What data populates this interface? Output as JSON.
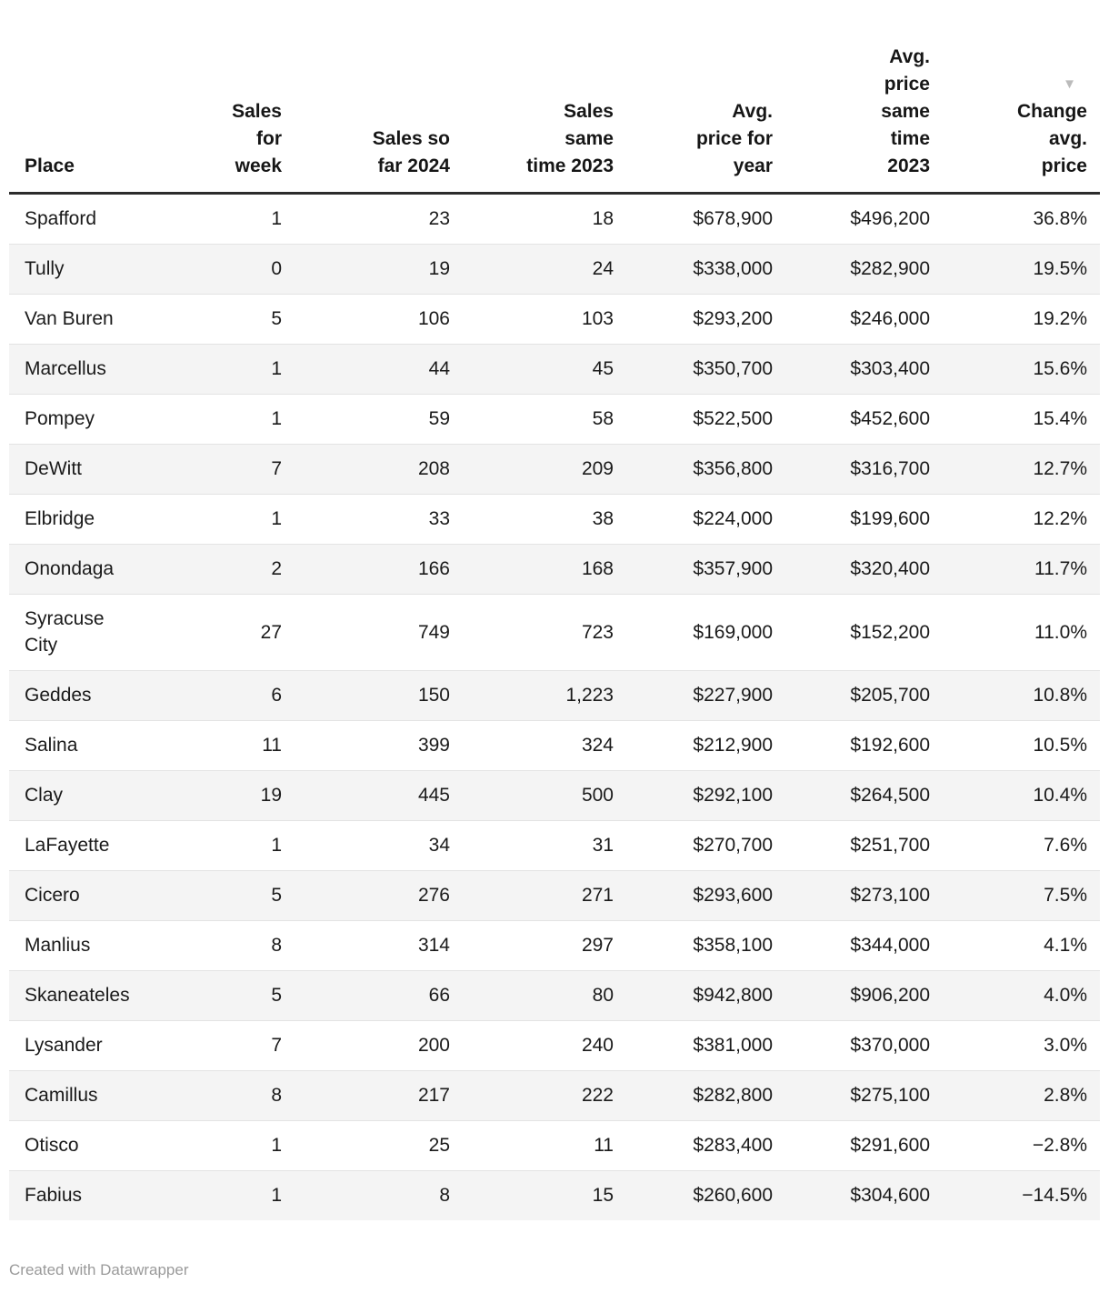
{
  "chart_data": {
    "type": "table",
    "columns": [
      {
        "id": "place",
        "label": "Place",
        "align": "left"
      },
      {
        "id": "sales-for-week",
        "label": "Sales\nfor\nweek",
        "align": "right"
      },
      {
        "id": "sales-so-far-2024",
        "label": "Sales so\nfar 2024",
        "align": "right"
      },
      {
        "id": "sales-same-time-2023",
        "label": "Sales\nsame\ntime 2023",
        "align": "right"
      },
      {
        "id": "avg-price-for-year",
        "label": "Avg.\nprice for\nyear",
        "align": "right"
      },
      {
        "id": "avg-price-same-time-2023",
        "label": "Avg.\nprice\nsame\ntime\n2023",
        "align": "right"
      },
      {
        "id": "change-avg-price",
        "label": "Change\navg.\nprice",
        "align": "right"
      }
    ],
    "sorted_column": "change-avg-price",
    "sort_direction": "desc",
    "rows": [
      [
        "Spafford",
        "1",
        "23",
        "18",
        "$678,900",
        "$496,200",
        "36.8%"
      ],
      [
        "Tully",
        "0",
        "19",
        "24",
        "$338,000",
        "$282,900",
        "19.5%"
      ],
      [
        "Van Buren",
        "5",
        "106",
        "103",
        "$293,200",
        "$246,000",
        "19.2%"
      ],
      [
        "Marcellus",
        "1",
        "44",
        "45",
        "$350,700",
        "$303,400",
        "15.6%"
      ],
      [
        "Pompey",
        "1",
        "59",
        "58",
        "$522,500",
        "$452,600",
        "15.4%"
      ],
      [
        "DeWitt",
        "7",
        "208",
        "209",
        "$356,800",
        "$316,700",
        "12.7%"
      ],
      [
        "Elbridge",
        "1",
        "33",
        "38",
        "$224,000",
        "$199,600",
        "12.2%"
      ],
      [
        "Onondaga",
        "2",
        "166",
        "168",
        "$357,900",
        "$320,400",
        "11.7%"
      ],
      [
        "Syracuse\nCity",
        "27",
        "749",
        "723",
        "$169,000",
        "$152,200",
        "11.0%"
      ],
      [
        "Geddes",
        "6",
        "150",
        "1,223",
        "$227,900",
        "$205,700",
        "10.8%"
      ],
      [
        "Salina",
        "11",
        "399",
        "324",
        "$212,900",
        "$192,600",
        "10.5%"
      ],
      [
        "Clay",
        "19",
        "445",
        "500",
        "$292,100",
        "$264,500",
        "10.4%"
      ],
      [
        "LaFayette",
        "1",
        "34",
        "31",
        "$270,700",
        "$251,700",
        "7.6%"
      ],
      [
        "Cicero",
        "5",
        "276",
        "271",
        "$293,600",
        "$273,100",
        "7.5%"
      ],
      [
        "Manlius",
        "8",
        "314",
        "297",
        "$358,100",
        "$344,000",
        "4.1%"
      ],
      [
        "Skaneateles",
        "5",
        "66",
        "80",
        "$942,800",
        "$906,200",
        "4.0%"
      ],
      [
        "Lysander",
        "7",
        "200",
        "240",
        "$381,000",
        "$370,000",
        "3.0%"
      ],
      [
        "Camillus",
        "8",
        "217",
        "222",
        "$282,800",
        "$275,100",
        "2.8%"
      ],
      [
        "Otisco",
        "1",
        "25",
        "11",
        "$283,400",
        "$291,600",
        "−2.8%"
      ],
      [
        "Fabius",
        "1",
        "8",
        "15",
        "$260,600",
        "$304,600",
        "−14.5%"
      ]
    ]
  },
  "header": {
    "sort_arrow_glyph": "▼"
  },
  "footer": {
    "credit": "Created with Datawrapper"
  },
  "colors": {
    "text": "#1a1a1a",
    "header_text": "#161616",
    "stripe": "#f4f4f4",
    "divider": "#e3e3e3",
    "header_rule": "#2c2c2c",
    "sort_arrow": "#bbbbbb",
    "credit": "#9a9a9a",
    "background": "#ffffff"
  }
}
